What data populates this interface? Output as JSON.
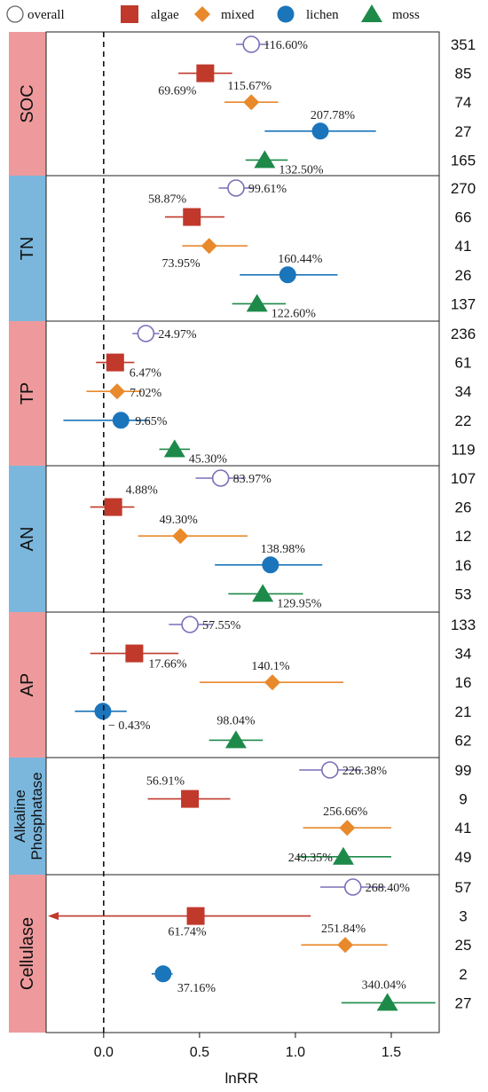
{
  "chart_data": {
    "type": "forest",
    "xlabel": "lnRR",
    "xlim": [
      -0.3,
      1.75
    ],
    "xticks": [
      0.0,
      0.5,
      1.0,
      1.5
    ],
    "xtick_labels": [
      "0.0",
      "0.5",
      "1.0",
      "1.5"
    ],
    "reference_line": 0,
    "legend": [
      {
        "key": "overall",
        "label": "overall",
        "marker": "circle-open",
        "color": "#7b6fb8"
      },
      {
        "key": "algae",
        "label": "algae",
        "marker": "square",
        "color": "#c0392b"
      },
      {
        "key": "mixed",
        "label": "mixed",
        "marker": "diamond",
        "color": "#e8892c"
      },
      {
        "key": "lichen",
        "label": "lichen",
        "marker": "circle",
        "color": "#1b75bb"
      },
      {
        "key": "moss",
        "label": "moss",
        "marker": "triangle",
        "color": "#1e8a4a"
      }
    ],
    "groups": [
      {
        "label": "SOC",
        "color": "#ee9a9c",
        "rows": [
          {
            "series": "overall",
            "est": 0.77,
            "lo": 0.69,
            "hi": 0.86,
            "pct": "116.60%",
            "n": "351"
          },
          {
            "series": "algae",
            "est": 0.53,
            "lo": 0.39,
            "hi": 0.67,
            "pct": "69.69%",
            "n": "85"
          },
          {
            "series": "mixed",
            "est": 0.77,
            "lo": 0.63,
            "hi": 0.91,
            "pct": "115.67%",
            "n": "74"
          },
          {
            "series": "lichen",
            "est": 1.13,
            "lo": 0.84,
            "hi": 1.42,
            "pct": "207.78%",
            "n": "27"
          },
          {
            "series": "moss",
            "est": 0.84,
            "lo": 0.74,
            "hi": 0.96,
            "pct": "132.50%",
            "n": "165"
          }
        ]
      },
      {
        "label": "TN",
        "color": "#7bb7dd",
        "rows": [
          {
            "series": "overall",
            "est": 0.69,
            "lo": 0.6,
            "hi": 0.78,
            "pct": "99.61%",
            "n": "270"
          },
          {
            "series": "algae",
            "est": 0.46,
            "lo": 0.32,
            "hi": 0.63,
            "pct": "58.87%",
            "n": "66"
          },
          {
            "series": "mixed",
            "est": 0.55,
            "lo": 0.41,
            "hi": 0.75,
            "pct": "73.95%",
            "n": "41"
          },
          {
            "series": "lichen",
            "est": 0.96,
            "lo": 0.71,
            "hi": 1.22,
            "pct": "160.44%",
            "n": "26"
          },
          {
            "series": "moss",
            "est": 0.8,
            "lo": 0.67,
            "hi": 0.95,
            "pct": "122.60%",
            "n": "137"
          }
        ]
      },
      {
        "label": "TP",
        "color": "#ee9a9c",
        "rows": [
          {
            "series": "overall",
            "est": 0.22,
            "lo": 0.15,
            "hi": 0.29,
            "pct": "24.97%",
            "n": "236"
          },
          {
            "series": "algae",
            "est": 0.06,
            "lo": -0.04,
            "hi": 0.16,
            "pct": "6.47%",
            "n": "61"
          },
          {
            "series": "mixed",
            "est": 0.07,
            "lo": -0.09,
            "hi": 0.2,
            "pct": "7.02%",
            "n": "34"
          },
          {
            "series": "lichen",
            "est": 0.09,
            "lo": -0.21,
            "hi": 0.24,
            "pct": "9.65%",
            "n": "22"
          },
          {
            "series": "moss",
            "est": 0.37,
            "lo": 0.29,
            "hi": 0.45,
            "pct": "45.30%",
            "n": "119"
          }
        ]
      },
      {
        "label": "AN",
        "color": "#7bb7dd",
        "rows": [
          {
            "series": "overall",
            "est": 0.61,
            "lo": 0.48,
            "hi": 0.74,
            "pct": "83.97%",
            "n": "107"
          },
          {
            "series": "algae",
            "est": 0.05,
            "lo": -0.07,
            "hi": 0.16,
            "pct": "4.88%",
            "n": "26"
          },
          {
            "series": "mixed",
            "est": 0.4,
            "lo": 0.18,
            "hi": 0.75,
            "pct": "49.30%",
            "n": "12"
          },
          {
            "series": "lichen",
            "est": 0.87,
            "lo": 0.58,
            "hi": 1.14,
            "pct": "138.98%",
            "n": "16"
          },
          {
            "series": "moss",
            "est": 0.83,
            "lo": 0.65,
            "hi": 1.04,
            "pct": "129.95%",
            "n": "53"
          }
        ]
      },
      {
        "label": "AP",
        "color": "#ee9a9c",
        "rows": [
          {
            "series": "overall",
            "est": 0.45,
            "lo": 0.34,
            "hi": 0.57,
            "pct": "57.55%",
            "n": "133"
          },
          {
            "series": "algae",
            "est": 0.16,
            "lo": -0.07,
            "hi": 0.39,
            "pct": "17.66%",
            "n": "34"
          },
          {
            "series": "mixed",
            "est": 0.88,
            "lo": 0.5,
            "hi": 1.25,
            "pct": "140.1%",
            "n": "16"
          },
          {
            "series": "lichen",
            "est": -0.004,
            "lo": -0.15,
            "hi": 0.12,
            "pct": "− 0.43%",
            "n": "21"
          },
          {
            "series": "moss",
            "est": 0.69,
            "lo": 0.55,
            "hi": 0.83,
            "pct": "98.04%",
            "n": "62"
          }
        ]
      },
      {
        "label": [
          "Alkaline",
          "Phosphatase"
        ],
        "color": "#7bb7dd",
        "rows": [
          {
            "series": "overall",
            "est": 1.18,
            "lo": 1.02,
            "hi": 1.35,
            "pct": "226.38%",
            "n": "99"
          },
          {
            "series": "algae",
            "est": 0.45,
            "lo": 0.23,
            "hi": 0.66,
            "pct": "56.91%",
            "n": "9"
          },
          {
            "series": "mixed",
            "est": 1.27,
            "lo": 1.04,
            "hi": 1.5,
            "pct": "256.66%",
            "n": "41"
          },
          {
            "series": "moss",
            "est": 1.25,
            "lo": 1.01,
            "hi": 1.5,
            "pct": "249.35%",
            "n": "49"
          }
        ]
      },
      {
        "label": "Cellulase",
        "color": "#ee9a9c",
        "rows": [
          {
            "series": "overall",
            "est": 1.3,
            "lo": 1.13,
            "hi": 1.47,
            "pct": "268.40%",
            "n": "57"
          },
          {
            "series": "algae",
            "est": 0.48,
            "lo": -0.3,
            "hi": 1.08,
            "pct": "61.74%",
            "n": "3",
            "lo_truncated": true
          },
          {
            "series": "mixed",
            "est": 1.26,
            "lo": 1.03,
            "hi": 1.48,
            "pct": "251.84%",
            "n": "25"
          },
          {
            "series": "lichen",
            "est": 0.31,
            "lo": 0.25,
            "hi": 0.36,
            "pct": "37.16%",
            "n": "2"
          },
          {
            "series": "moss",
            "est": 1.48,
            "lo": 1.24,
            "hi": 1.73,
            "pct": "340.04%",
            "n": "27"
          }
        ]
      }
    ]
  }
}
